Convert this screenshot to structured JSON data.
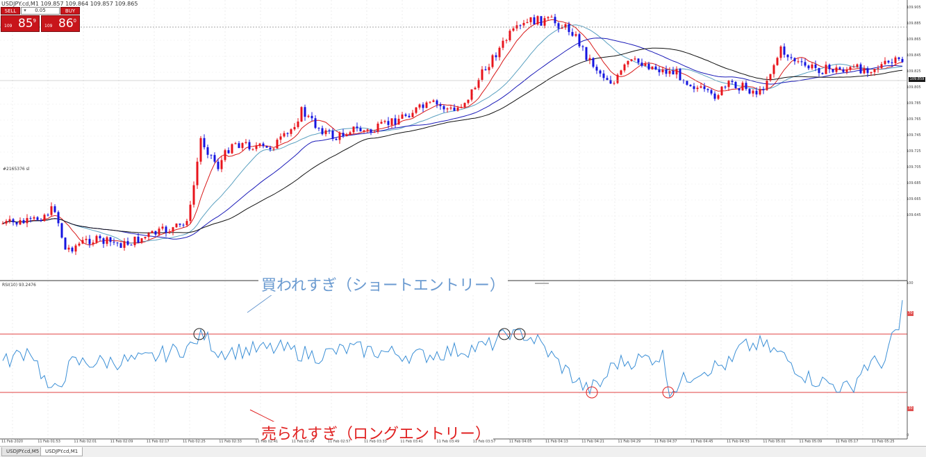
{
  "window": {
    "title": "USDJPY.cd,M1  109.857 109.864 109.857 109.865"
  },
  "trade_panel": {
    "sell_label": "SELL",
    "buy_label": "BUY",
    "lot_value": "0.05",
    "sell_prefix": "109",
    "sell_big": "85",
    "sell_sup": "9",
    "buy_prefix": "109",
    "buy_big": "86",
    "buy_sup": "0"
  },
  "price_axis": {
    "labels": [
      "109.905",
      "109.885",
      "109.865",
      "109.845",
      "109.825",
      "109.805",
      "109.785",
      "109.765",
      "109.745",
      "109.725",
      "109.705",
      "109.685",
      "109.665",
      "109.645"
    ],
    "current_price": "109.859"
  },
  "object_label": "#2165376 sl",
  "rsi": {
    "title": "RSI(10) 93.2476",
    "upper_level": "70",
    "lower_level": "30",
    "top_label": "100",
    "bottom_label": "0"
  },
  "annotations": {
    "overbought": "買われすぎ（ショートエントリー）",
    "oversold": "売られすぎ（ロングエントリー）"
  },
  "time_axis": [
    "11 Feb 2020",
    "11 Feb 01:53",
    "11 Feb 02:01",
    "11 Feb 02:09",
    "11 Feb 02:17",
    "11 Feb 02:25",
    "11 Feb 02:33",
    "11 Feb 02:41",
    "11 Feb 02:49",
    "11 Feb 02:57",
    "11 Feb 03:33",
    "11 Feb 03:41",
    "11 Feb 03:49",
    "11 Feb 03:57",
    "11 Feb 04:05",
    "11 Feb 04:13",
    "11 Feb 04:21",
    "11 Feb 04:29",
    "11 Feb 04:37",
    "11 Feb 04:45",
    "11 Feb 04:53",
    "11 Feb 05:01",
    "11 Feb 05:09",
    "11 Feb 05:17",
    "11 Feb 05:25"
  ],
  "tabs": [
    "USDJPY.cd,M5",
    "USDJPY.cd,M1"
  ],
  "colors": {
    "bull": "#e8141c",
    "bear": "#1515e0",
    "rsi_line": "#3b8fd6",
    "level_line": "#e04040",
    "annot_over": "#6a9ad0",
    "annot_under": "#e02020"
  },
  "chart_data": {
    "type": "candlestick",
    "symbol": "USDJPY.cd",
    "timeframe": "M1",
    "indicators": [
      "moving averages (4)",
      "RSI(10)"
    ],
    "price_range": [
      109.64,
      109.91
    ],
    "rsi_levels": [
      30,
      70
    ],
    "rsi_last": 93.2476,
    "rsi_overbought_marks": 3,
    "rsi_oversold_marks": 2
  }
}
